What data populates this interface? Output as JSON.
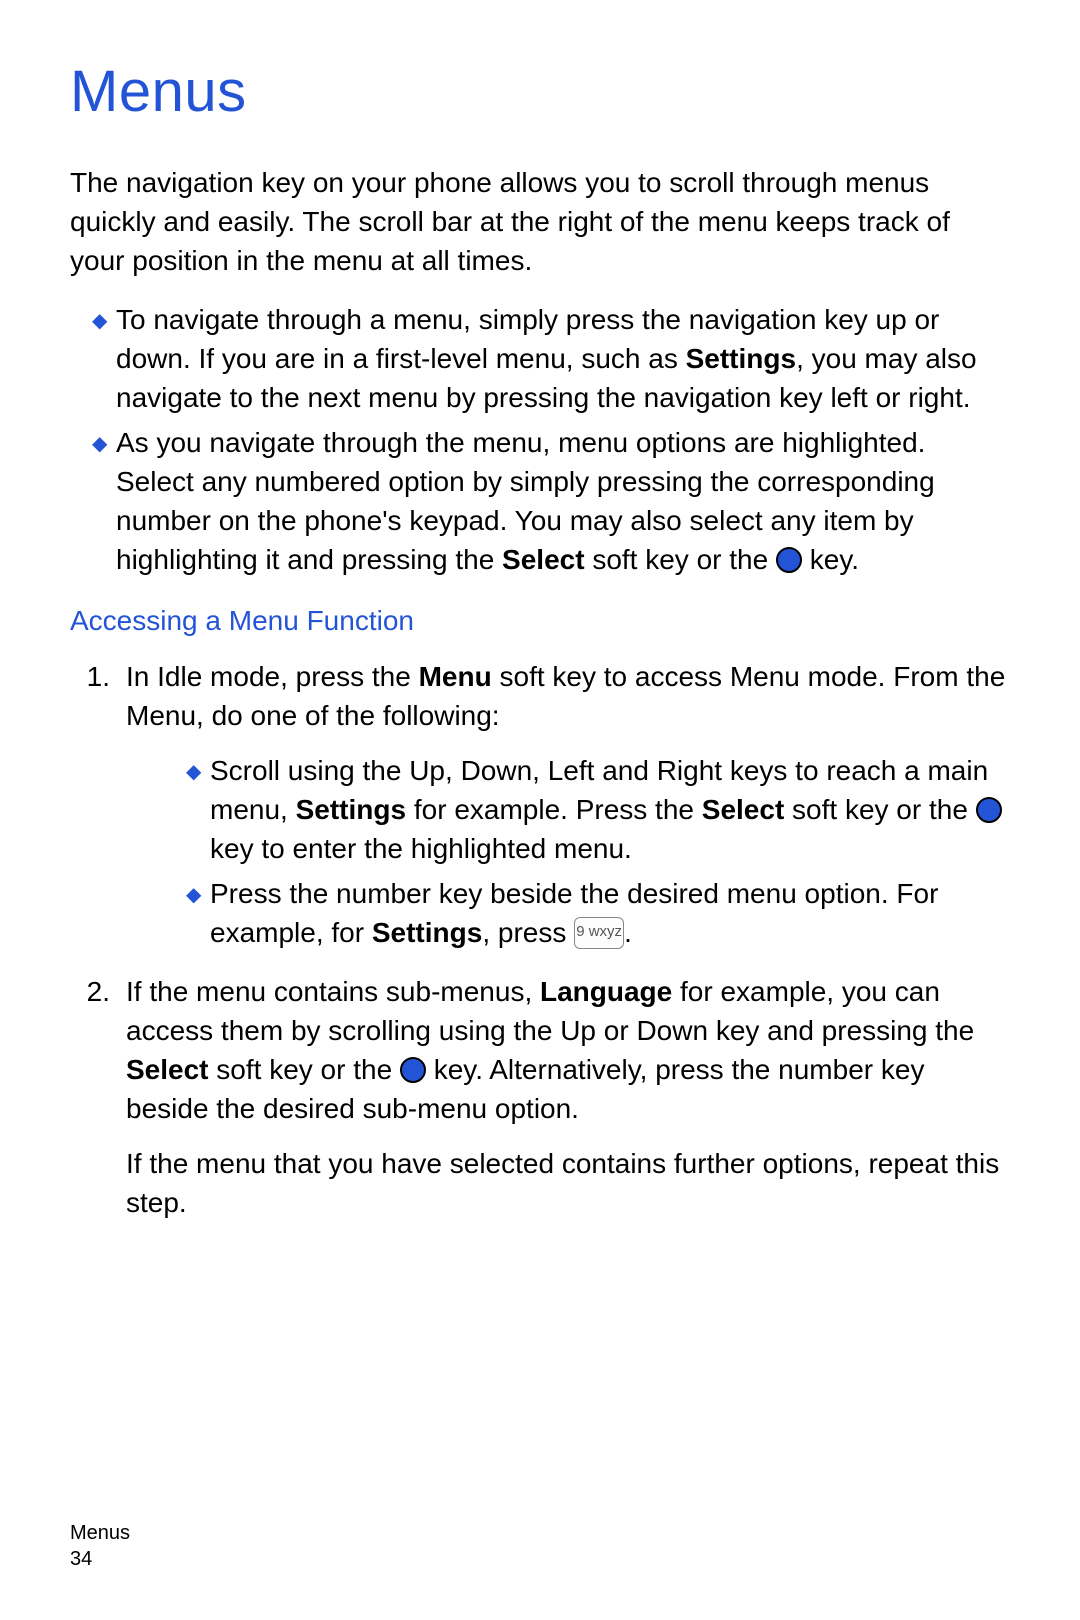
{
  "colors": {
    "heading_blue": "#2454d6",
    "diamond_blue": "#2454d6",
    "circle_fill": "#2454d6",
    "text": "#000000",
    "background": "#ffffff",
    "footer_text": "#000000"
  },
  "typography": {
    "title_fontsize": 58,
    "body_fontsize": 28,
    "body_lineheight": 39,
    "subheading_fontsize": 28,
    "footer_fontsize": 20,
    "diamond_fontsize": 20
  },
  "title": "Menus",
  "intro": "The navigation key on your phone allows you to scroll through menus quickly and easily. The scroll bar at the right of the menu keeps track of your position in the menu at all times.",
  "bullets": {
    "b1_pre": "To navigate through a menu, simply press the navigation key up or down. If you are in a first-level menu, such as ",
    "b1_bold": "Settings",
    "b1_post": ", you may also navigate to the next menu by pressing the navigation key left or right.",
    "b2_pre": "As you navigate through the menu, menu options are highlighted. Select any numbered option by simply pressing the corresponding number on the phone's keypad. You may also select any item by highlighting it and pressing the ",
    "b2_bold": "Select",
    "b2_mid": " soft key or the ",
    "b2_post": " key."
  },
  "subheading": "Accessing a Menu Function",
  "step1": {
    "num": "1.",
    "pre": "In Idle mode, press the ",
    "bold1": "Menu",
    "mid": " soft key to access Menu mode. From the Menu, do one of the following:"
  },
  "step1_sub": {
    "a_pre": "Scroll using the Up, Down, Left and Right keys to reach a main menu, ",
    "a_bold1": "Settings",
    "a_mid1": " for example. Press the ",
    "a_bold2": "Select",
    "a_mid2": " soft key or the ",
    "a_post": " key to enter the highlighted menu.",
    "b_pre": "Press the number key beside the desired menu option. For example, for ",
    "b_bold": "Settings",
    "b_mid": ", press ",
    "b_post": "."
  },
  "key_label": "9 wxyz",
  "step2": {
    "num": "2.",
    "pre": "If the menu contains sub-menus, ",
    "bold1": "Language",
    "mid1": " for example, you can access them by scrolling using the Up or Down key and pressing the ",
    "bold2": "Select",
    "mid2": " soft key or the ",
    "post": " key. Alternatively, press the number key beside the desired sub-menu option.",
    "extra": "If the menu that you have selected contains further options, repeat this step."
  },
  "footer": {
    "section": "Menus",
    "page": "34"
  }
}
